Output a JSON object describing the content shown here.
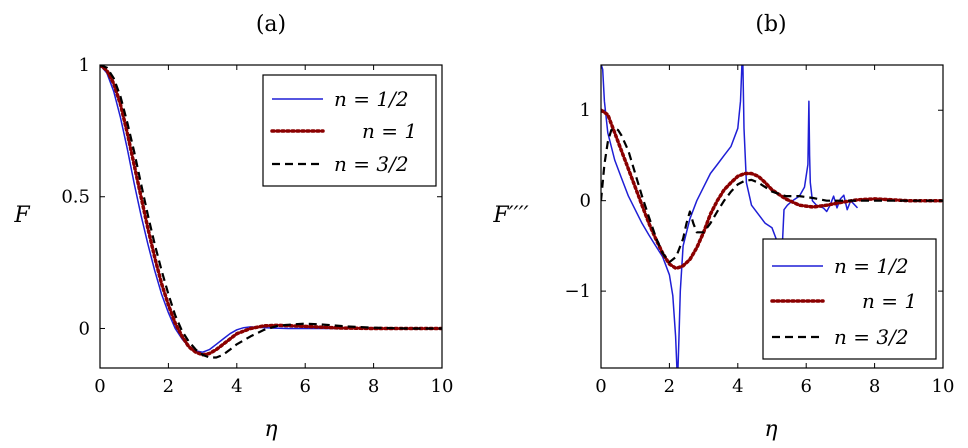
{
  "chart_data": [
    {
      "type": "line",
      "panel_label": "(a)",
      "xlabel": "η",
      "ylabel": "F",
      "xlim": [
        0,
        10
      ],
      "ylim": [
        -0.15,
        1.0
      ],
      "xticks": [
        0,
        2,
        4,
        6,
        8,
        10
      ],
      "yticks": [
        0,
        0.5,
        1
      ],
      "ytick_labels": [
        "0",
        "0.5",
        "1"
      ],
      "legend_position": "top-right",
      "series": [
        {
          "name": "n = 1/2",
          "color": "#1f1fd6",
          "style": "solid",
          "x": [
            0,
            0.2,
            0.4,
            0.6,
            0.8,
            1.0,
            1.2,
            1.4,
            1.6,
            1.8,
            2.0,
            2.2,
            2.4,
            2.6,
            2.8,
            3.0,
            3.2,
            3.4,
            3.6,
            3.8,
            4.0,
            4.2,
            4.4,
            4.6,
            5.0,
            5.5,
            6.0,
            7.0,
            8.0,
            10.0
          ],
          "y": [
            1.0,
            0.97,
            0.9,
            0.8,
            0.68,
            0.55,
            0.43,
            0.32,
            0.22,
            0.13,
            0.06,
            0.0,
            -0.04,
            -0.07,
            -0.085,
            -0.09,
            -0.08,
            -0.06,
            -0.04,
            -0.02,
            -0.005,
            0.003,
            0.006,
            0.005,
            0.002,
            0.0,
            0.0,
            0.0,
            0.0,
            0.0
          ]
        },
        {
          "name": "n = 1",
          "color": "#8b0000",
          "style": "dotted",
          "x": [
            0,
            0.2,
            0.4,
            0.6,
            0.8,
            1.0,
            1.2,
            1.4,
            1.6,
            1.8,
            2.0,
            2.2,
            2.4,
            2.6,
            2.8,
            3.0,
            3.2,
            3.4,
            3.6,
            3.8,
            4.0,
            4.4,
            4.8,
            5.2,
            5.6,
            6.0,
            6.5,
            7.0,
            8.0,
            9.0,
            10.0
          ],
          "y": [
            1.0,
            0.98,
            0.93,
            0.85,
            0.74,
            0.62,
            0.5,
            0.38,
            0.27,
            0.17,
            0.09,
            0.02,
            -0.03,
            -0.07,
            -0.09,
            -0.1,
            -0.095,
            -0.08,
            -0.06,
            -0.04,
            -0.02,
            0.0,
            0.01,
            0.012,
            0.01,
            0.008,
            0.005,
            0.002,
            0.0,
            0.0,
            0.0
          ]
        },
        {
          "name": "n = 3/2",
          "color": "#000000",
          "style": "dashed",
          "x": [
            0,
            0.2,
            0.4,
            0.6,
            0.8,
            1.0,
            1.2,
            1.4,
            1.6,
            1.8,
            2.0,
            2.2,
            2.4,
            2.6,
            2.8,
            3.0,
            3.2,
            3.4,
            3.6,
            3.8,
            4.0,
            4.4,
            4.8,
            5.2,
            5.6,
            6.0,
            6.4,
            6.8,
            7.2,
            8.0,
            9.0,
            10.0
          ],
          "y": [
            1.0,
            0.99,
            0.95,
            0.88,
            0.78,
            0.67,
            0.55,
            0.43,
            0.32,
            0.22,
            0.13,
            0.05,
            -0.01,
            -0.05,
            -0.08,
            -0.1,
            -0.11,
            -0.11,
            -0.1,
            -0.08,
            -0.06,
            -0.03,
            -0.005,
            0.01,
            0.015,
            0.018,
            0.016,
            0.012,
            0.008,
            0.003,
            0.0,
            0.0
          ]
        }
      ]
    },
    {
      "type": "line",
      "panel_label": "(b)",
      "xlabel": "η",
      "ylabel": "F′′′′",
      "xlim": [
        0,
        10
      ],
      "ylim": [
        -1.85,
        1.5
      ],
      "xticks": [
        0,
        2,
        4,
        6,
        8,
        10
      ],
      "yticks": [
        -1,
        0,
        1
      ],
      "ytick_labels": [
        "−1",
        "0",
        "1"
      ],
      "legend_position": "bottom-right",
      "series": [
        {
          "name": "n = 1/2",
          "color": "#1f1fd6",
          "style": "solid",
          "x": [
            0.01,
            0.05,
            0.1,
            0.2,
            0.4,
            0.6,
            0.8,
            1.0,
            1.2,
            1.4,
            1.6,
            1.8,
            2.0,
            2.1,
            2.18,
            2.22,
            2.25,
            2.28,
            2.32,
            2.4,
            2.6,
            2.8,
            3.0,
            3.2,
            3.4,
            3.6,
            3.8,
            4.0,
            4.08,
            4.12,
            4.15,
            4.18,
            4.25,
            4.4,
            4.6,
            4.8,
            5.0,
            5.15,
            5.25,
            5.3,
            5.35,
            5.45,
            5.6,
            5.8,
            5.95,
            6.05,
            6.08,
            6.1,
            6.12,
            6.18,
            6.3,
            6.5,
            6.6,
            6.7,
            6.8,
            6.9,
            7.0,
            7.1,
            7.2,
            7.3,
            7.5
          ],
          "y": [
            1.5,
            1.45,
            1.1,
            0.75,
            0.45,
            0.25,
            0.05,
            -0.1,
            -0.25,
            -0.38,
            -0.5,
            -0.62,
            -0.82,
            -1.05,
            -1.5,
            -1.85,
            -1.85,
            -1.5,
            -1.0,
            -0.5,
            -0.2,
            0.0,
            0.15,
            0.3,
            0.4,
            0.5,
            0.6,
            0.8,
            1.1,
            1.5,
            1.5,
            0.8,
            0.2,
            -0.05,
            -0.15,
            -0.25,
            -0.3,
            -0.45,
            -0.8,
            -0.5,
            -0.1,
            -0.05,
            0.0,
            0.05,
            0.15,
            0.4,
            1.1,
            0.5,
            0.2,
            0.0,
            -0.05,
            -0.08,
            -0.12,
            -0.05,
            0.05,
            -0.08,
            0.02,
            0.06,
            -0.1,
            0.0,
            -0.08
          ]
        },
        {
          "name": "n = 1",
          "color": "#8b0000",
          "style": "dotted",
          "x": [
            0,
            0.2,
            0.4,
            0.6,
            0.8,
            1.0,
            1.2,
            1.4,
            1.6,
            1.8,
            2.0,
            2.2,
            2.4,
            2.6,
            2.8,
            3.0,
            3.2,
            3.4,
            3.6,
            3.8,
            4.0,
            4.2,
            4.4,
            4.6,
            4.8,
            5.0,
            5.4,
            5.8,
            6.2,
            6.6,
            7.0,
            7.5,
            8.0,
            9.0,
            10.0
          ],
          "y": [
            1.0,
            0.95,
            0.75,
            0.55,
            0.35,
            0.15,
            -0.05,
            -0.25,
            -0.42,
            -0.58,
            -0.7,
            -0.75,
            -0.72,
            -0.65,
            -0.52,
            -0.35,
            -0.15,
            0.0,
            0.12,
            0.2,
            0.27,
            0.3,
            0.3,
            0.27,
            0.2,
            0.12,
            0.02,
            -0.05,
            -0.07,
            -0.05,
            -0.02,
            0.01,
            0.02,
            0.0,
            0.0
          ]
        },
        {
          "name": "n = 3/2",
          "color": "#000000",
          "style": "dashed",
          "x": [
            0,
            0.05,
            0.1,
            0.2,
            0.3,
            0.4,
            0.5,
            0.6,
            0.8,
            1.0,
            1.2,
            1.4,
            1.6,
            1.8,
            2.0,
            2.2,
            2.4,
            2.5,
            2.6,
            2.7,
            2.8,
            3.0,
            3.2,
            3.4,
            3.6,
            3.8,
            4.0,
            4.2,
            4.4,
            4.6,
            4.8,
            5.0,
            5.4,
            5.8,
            6.2,
            6.6,
            7.0,
            8.0,
            9.0,
            10.0
          ],
          "y": [
            0.0,
            0.2,
            0.4,
            0.65,
            0.78,
            0.8,
            0.78,
            0.72,
            0.55,
            0.3,
            0.05,
            -0.18,
            -0.4,
            -0.58,
            -0.68,
            -0.62,
            -0.42,
            -0.25,
            -0.12,
            -0.25,
            -0.35,
            -0.35,
            -0.25,
            -0.12,
            0.0,
            0.1,
            0.18,
            0.22,
            0.23,
            0.2,
            0.15,
            0.1,
            0.05,
            0.05,
            0.03,
            0.0,
            0.0,
            0.0,
            0.0,
            0.0
          ]
        }
      ]
    }
  ]
}
